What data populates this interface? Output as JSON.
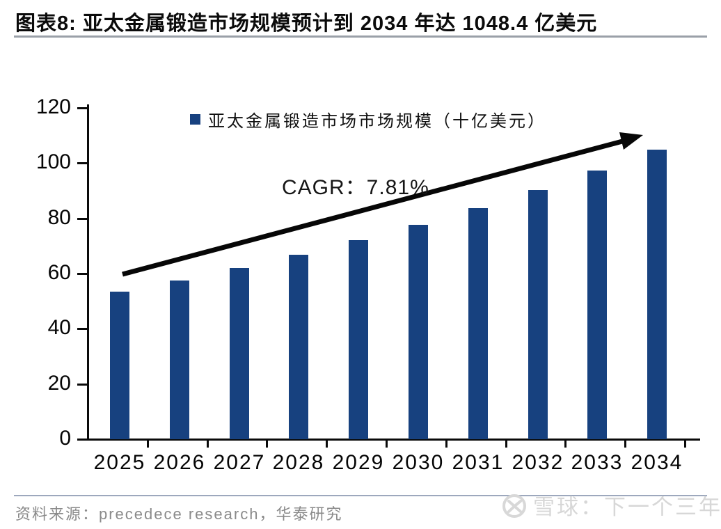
{
  "header": {
    "title": "图表8:  亚太金属锻造市场规模预计到 2034 年达 1048.4 亿美元"
  },
  "chart_data": {
    "type": "bar",
    "categories": [
      "2025",
      "2026",
      "2027",
      "2028",
      "2029",
      "2030",
      "2031",
      "2032",
      "2033",
      "2034"
    ],
    "values": [
      53.4,
      57.5,
      62.0,
      66.8,
      72.0,
      77.7,
      83.7,
      90.2,
      97.3,
      104.84
    ],
    "legend": [
      "亚太金属锻造市场市场规模（十亿美元）"
    ],
    "legend_position": "top-center",
    "cagr_label": "CAGR：7.81%",
    "ylim": [
      0,
      120
    ],
    "yticks": [
      0,
      20,
      40,
      60,
      80,
      100,
      120
    ],
    "grid": false,
    "bar_color": "#17417F",
    "axis_color": "#0a0a0a",
    "annotation_arrow": "upward trend arrow from 2025 bar to 2034 bar"
  },
  "footer": {
    "source": "资料来源：precedece research，华泰研究",
    "watermark": "雪球：下一个三年"
  }
}
